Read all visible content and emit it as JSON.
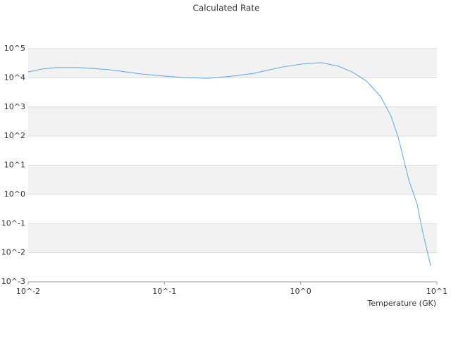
{
  "chart_data": {
    "type": "line",
    "title": "Calculated Rate",
    "x_label": "Temperature (GK)",
    "log_x": true,
    "log_y": true,
    "grid": true,
    "xlim": [
      0.01,
      10
    ],
    "ylim": [
      0.001,
      100000
    ],
    "xticks": [
      {
        "value": 0.01,
        "label": "10^-2"
      },
      {
        "value": 0.1,
        "label": "10^-1"
      },
      {
        "value": 1,
        "label": "10^0"
      },
      {
        "value": 10,
        "label": "10^1"
      }
    ],
    "yticks": [
      {
        "value": 0.001,
        "label": "10^-3"
      },
      {
        "value": 0.01,
        "label": "10^-2"
      },
      {
        "value": 0.1,
        "label": "10^-1"
      },
      {
        "value": 1,
        "label": "10^0"
      },
      {
        "value": 10,
        "label": "10^1"
      },
      {
        "value": 100,
        "label": "10^2"
      },
      {
        "value": 1000,
        "label": "10^3"
      },
      {
        "value": 10000,
        "label": "10^4"
      },
      {
        "value": 100000,
        "label": "10^5"
      }
    ],
    "x": [
      0.01,
      0.0127,
      0.0161,
      0.023,
      0.0292,
      0.0394,
      0.047,
      0.0672,
      0.1,
      0.137,
      0.208,
      0.316,
      0.452,
      0.728,
      1,
      1.41,
      1.89,
      2.39,
      3.04,
      3.86,
      4.61,
      5.2,
      6.21,
      7.16,
      7.88,
      8.99
    ],
    "series": [
      {
        "color": "#5aa5f0",
        "values": [
          15800,
          20000,
          22400,
          22400,
          21000,
          18800,
          17000,
          13500,
          11400,
          10200,
          9600,
          11400,
          14200,
          23300,
          29300,
          33000,
          25000,
          15800,
          7700,
          2300,
          480,
          90,
          3.2,
          0.46,
          0.049,
          0.0036
        ]
      }
    ]
  }
}
